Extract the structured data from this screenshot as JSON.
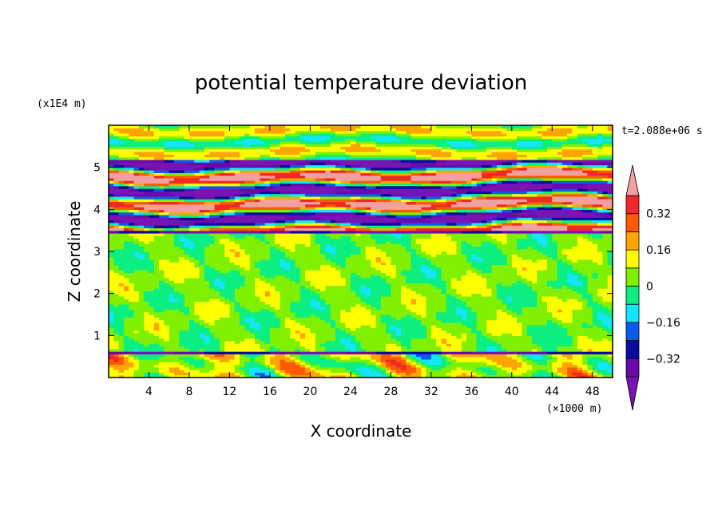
{
  "chart_data": {
    "type": "heatmap",
    "title": "potential temperature deviation",
    "xlabel": "X coordinate",
    "ylabel": "Z coordinate",
    "x_unit": "(×1000 m)",
    "y_unit": "(x1E4 m)",
    "time_label": "t=2.088e+06 s",
    "xlim": [
      0,
      50
    ],
    "ylim": [
      0,
      6
    ],
    "x_ticks": [
      "4",
      "8",
      "12",
      "16",
      "20",
      "24",
      "28",
      "32",
      "36",
      "40",
      "44",
      "48"
    ],
    "y_ticks": [
      "1",
      "2",
      "3",
      "4",
      "5"
    ],
    "colorbar": {
      "levels": [
        -0.4,
        -0.32,
        -0.24,
        -0.16,
        -0.08,
        0,
        0.08,
        0.16,
        0.24,
        0.32,
        0.4
      ],
      "tick_labels": [
        "-0.32",
        "-0.16",
        "0",
        "0.16",
        "0.32"
      ],
      "tick_values": [
        -0.32,
        -0.16,
        0,
        0.16,
        0.32
      ],
      "colors": [
        "#6a0aab",
        "#0a0aa0",
        "#0a5af0",
        "#14e6ff",
        "#0aee82",
        "#7ef000",
        "#ffff00",
        "#ffa500",
        "#ff5a00",
        "#f02828"
      ],
      "under_color": "#7814b4",
      "over_color": "#f0a0a0"
    },
    "bands": [
      {
        "z0": 0,
        "z1": 0.55,
        "base": 0.08,
        "var": "sea"
      },
      {
        "z0": 0.55,
        "z1": 0.62,
        "base": -0.35,
        "var": "line"
      },
      {
        "z0": 0.62,
        "z1": 3.45,
        "base": 0.03,
        "var": "low"
      },
      {
        "z0": 3.45,
        "z1": 3.5,
        "base": -0.38,
        "var": "line"
      },
      {
        "z0": 3.5,
        "z1": 5.2,
        "base": 0,
        "var": "strong"
      },
      {
        "z0": 5.2,
        "z1": 6.0,
        "base": 0.05,
        "var": "top"
      }
    ]
  }
}
